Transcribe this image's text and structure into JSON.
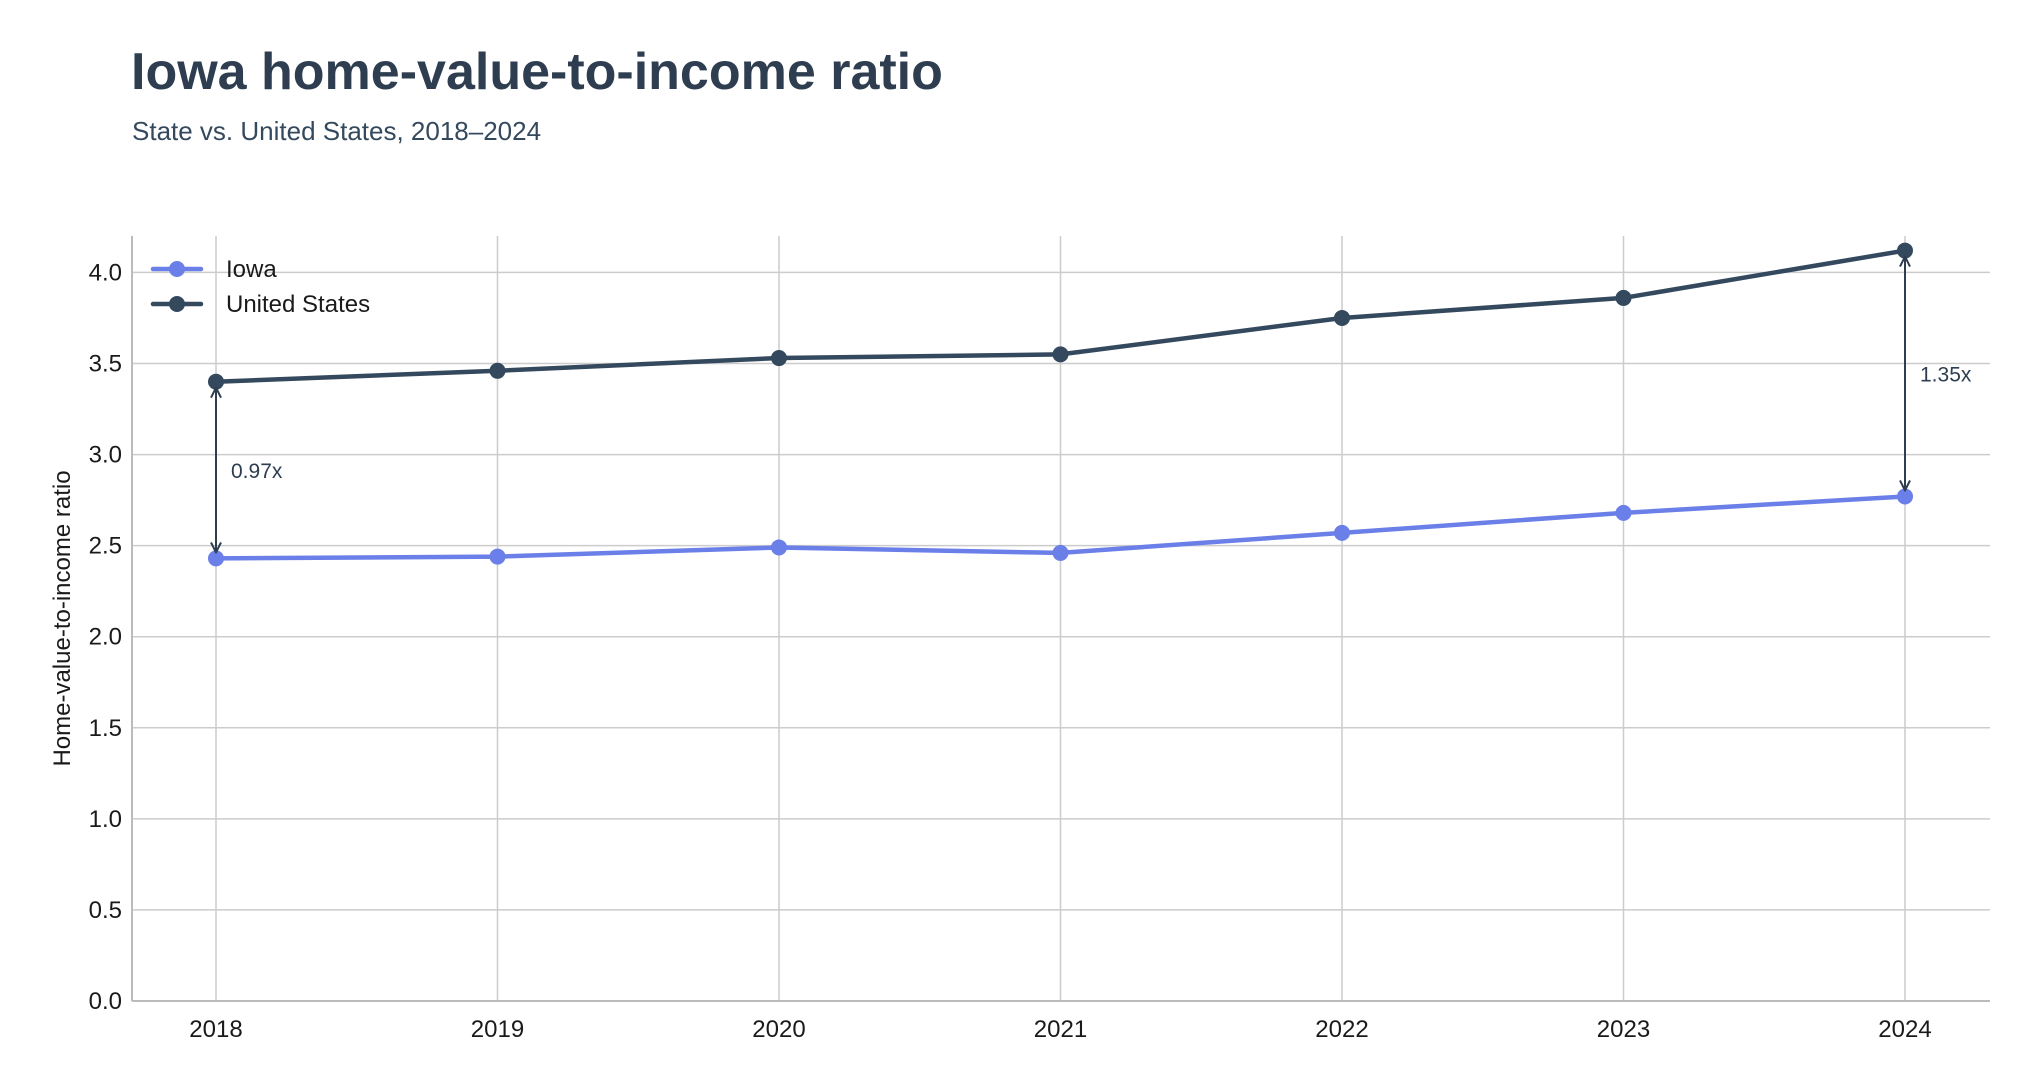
{
  "title": "Iowa home-value-to-income ratio",
  "subtitle": "State vs. United States, 2018–2024",
  "chart_data": {
    "type": "line",
    "title": "Iowa home-value-to-income ratio",
    "subtitle": "State vs. United States, 2018–2024",
    "xlabel": "",
    "ylabel": "Home-value-to-income ratio",
    "x": [
      "2018",
      "2019",
      "2020",
      "2021",
      "2022",
      "2023",
      "2024"
    ],
    "ylim": [
      0,
      4.2
    ],
    "yticks": [
      "0.0",
      "0.5",
      "1.0",
      "1.5",
      "2.0",
      "2.5",
      "3.0",
      "3.5",
      "4.0"
    ],
    "grid": true,
    "legend_position": "top-left",
    "series": [
      {
        "name": "Iowa",
        "color": "#6b7fe8",
        "values": [
          2.43,
          2.44,
          2.49,
          2.46,
          2.57,
          2.68,
          2.77
        ]
      },
      {
        "name": "United States",
        "color": "#34495e",
        "values": [
          3.4,
          3.46,
          3.53,
          3.55,
          3.75,
          3.86,
          4.12
        ]
      }
    ],
    "annotations": [
      {
        "x": "2018",
        "label": "0.97x"
      },
      {
        "x": "2024",
        "label": "1.35x"
      }
    ]
  }
}
